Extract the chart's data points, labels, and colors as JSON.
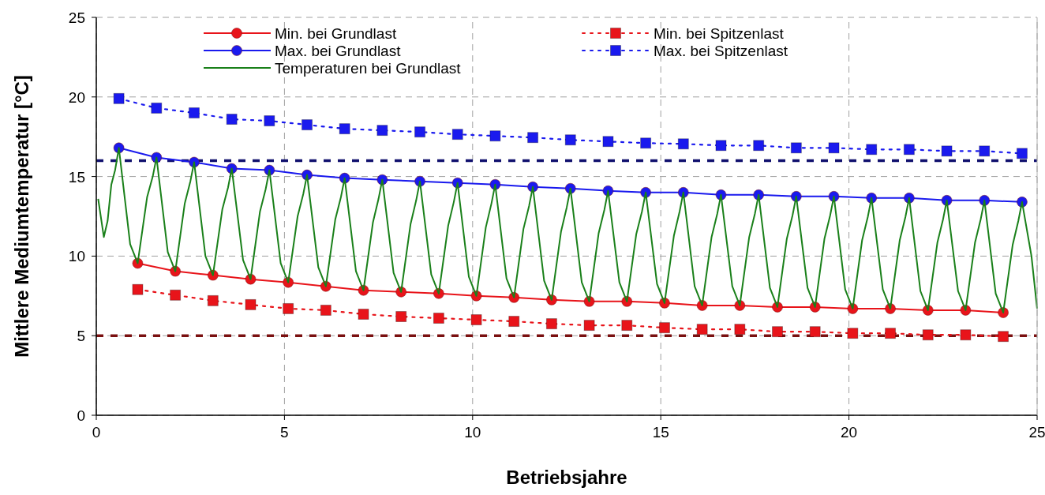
{
  "chart_data": {
    "type": "line",
    "xlabel": "Betriebsjahre",
    "ylabel": "Mittlere Mediumtemperatur [°C]",
    "xlim": [
      0,
      25
    ],
    "ylim": [
      0,
      25
    ],
    "xticks": [
      0,
      5,
      10,
      15,
      20,
      25
    ],
    "yticks": [
      0,
      5,
      10,
      15,
      20,
      25
    ],
    "grid": true,
    "legend": "top",
    "ref_lines": [
      {
        "axis": "y",
        "value": 16,
        "color": "#10106e",
        "line_style": "dashed"
      },
      {
        "axis": "y",
        "value": 5,
        "color": "#7a1010",
        "line_style": "dashed"
      }
    ],
    "series": [
      {
        "name": "Min. bei Grundlast",
        "color": "#e8141a",
        "marker": "circle",
        "line_style": "solid",
        "x": [
          1.1,
          2.1,
          3.1,
          4.1,
          5.1,
          6.1,
          7.1,
          8.1,
          9.1,
          10.1,
          11.1,
          12.1,
          13.1,
          14.1,
          15.1,
          16.1,
          17.1,
          18.1,
          19.1,
          20.1,
          21.1,
          22.1,
          23.1,
          24.1
        ],
        "values": [
          9.55,
          9.05,
          8.8,
          8.55,
          8.35,
          8.1,
          7.85,
          7.75,
          7.65,
          7.5,
          7.4,
          7.25,
          7.15,
          7.15,
          7.05,
          6.9,
          6.9,
          6.8,
          6.8,
          6.7,
          6.7,
          6.6,
          6.6,
          6.45
        ]
      },
      {
        "name": "Min. bei Spitzenlast",
        "color": "#e8141a",
        "marker": "square",
        "line_style": "dotted",
        "x": [
          1.1,
          2.1,
          3.1,
          4.1,
          5.1,
          6.1,
          7.1,
          8.1,
          9.1,
          10.1,
          11.1,
          12.1,
          13.1,
          14.1,
          15.1,
          16.1,
          17.1,
          18.1,
          19.1,
          20.1,
          21.1,
          22.1,
          23.1,
          24.1
        ],
        "values": [
          7.9,
          7.55,
          7.2,
          6.95,
          6.7,
          6.6,
          6.35,
          6.2,
          6.1,
          6.0,
          5.9,
          5.75,
          5.65,
          5.65,
          5.5,
          5.4,
          5.4,
          5.25,
          5.25,
          5.15,
          5.15,
          5.05,
          5.05,
          4.95
        ]
      },
      {
        "name": "Max. bei Grundlast",
        "color": "#1a1aee",
        "marker": "circle",
        "line_style": "solid",
        "x": [
          0.6,
          1.6,
          2.6,
          3.6,
          4.6,
          5.6,
          6.6,
          7.6,
          8.6,
          9.6,
          10.6,
          11.6,
          12.6,
          13.6,
          14.6,
          15.6,
          16.6,
          17.6,
          18.6,
          19.6,
          20.6,
          21.6,
          22.6,
          23.6,
          24.6
        ],
        "values": [
          16.8,
          16.2,
          15.9,
          15.5,
          15.4,
          15.1,
          14.9,
          14.8,
          14.7,
          14.6,
          14.5,
          14.35,
          14.25,
          14.1,
          14.0,
          14.0,
          13.85,
          13.85,
          13.75,
          13.75,
          13.65,
          13.65,
          13.5,
          13.5,
          13.4
        ]
      },
      {
        "name": "Max. bei Spitzenlast",
        "color": "#1a1aee",
        "marker": "square",
        "line_style": "dotted",
        "x": [
          0.6,
          1.6,
          2.6,
          3.6,
          4.6,
          5.6,
          6.6,
          7.6,
          8.6,
          9.6,
          10.6,
          11.6,
          12.6,
          13.6,
          14.6,
          15.6,
          16.6,
          17.6,
          18.6,
          19.6,
          20.6,
          21.6,
          22.6,
          23.6,
          24.6
        ],
        "values": [
          19.9,
          19.3,
          19.0,
          18.6,
          18.5,
          18.25,
          18.0,
          17.9,
          17.8,
          17.65,
          17.55,
          17.45,
          17.3,
          17.2,
          17.1,
          17.05,
          16.95,
          16.95,
          16.8,
          16.8,
          16.7,
          16.7,
          16.6,
          16.6,
          16.45
        ]
      },
      {
        "name": "Temperaturen bei Grundlast",
        "color": "#1a801a",
        "marker": "none",
        "line_style": "solid",
        "x": [
          0.05,
          0.2,
          0.3,
          0.4,
          0.5,
          0.6,
          0.9,
          1.1,
          1.35,
          1.5,
          1.6,
          1.9,
          2.1,
          2.35,
          2.5,
          2.6,
          2.9,
          3.1,
          3.35,
          3.5,
          3.6,
          3.9,
          4.1,
          4.35,
          4.5,
          4.6,
          4.9,
          5.1,
          5.35,
          5.5,
          5.6,
          5.9,
          6.1,
          6.35,
          6.5,
          6.6,
          6.9,
          7.1,
          7.35,
          7.5,
          7.6,
          7.9,
          8.1,
          8.35,
          8.5,
          8.6,
          8.9,
          9.1,
          9.35,
          9.5,
          9.6,
          9.9,
          10.1,
          10.35,
          10.5,
          10.6,
          10.9,
          11.1,
          11.35,
          11.5,
          11.6,
          11.9,
          12.1,
          12.35,
          12.5,
          12.6,
          12.9,
          13.1,
          13.35,
          13.5,
          13.6,
          13.9,
          14.1,
          14.35,
          14.5,
          14.6,
          14.9,
          15.1,
          15.35,
          15.5,
          15.6,
          15.9,
          16.1,
          16.35,
          16.5,
          16.6,
          16.9,
          17.1,
          17.35,
          17.5,
          17.6,
          17.9,
          18.1,
          18.35,
          18.5,
          18.6,
          18.9,
          19.1,
          19.35,
          19.5,
          19.6,
          19.9,
          20.1,
          20.35,
          20.5,
          20.6,
          20.9,
          21.1,
          21.35,
          21.5,
          21.6,
          21.9,
          22.1,
          22.35,
          22.5,
          22.6,
          22.9,
          23.1,
          23.35,
          23.5,
          23.6,
          23.9,
          24.1,
          24.35,
          24.5,
          24.6,
          24.85,
          25
        ],
        "values": [
          13.6,
          11.2,
          12.2,
          14.5,
          15.4,
          16.8,
          10.75,
          9.55,
          13.7,
          15.0,
          16.2,
          10.25,
          9.05,
          13.3,
          14.7,
          15.9,
          10.0,
          8.8,
          12.95,
          14.3,
          15.5,
          9.75,
          8.55,
          12.8,
          14.2,
          15.4,
          9.55,
          8.35,
          12.5,
          13.9,
          15.1,
          9.3,
          8.1,
          12.3,
          13.7,
          14.9,
          9.05,
          7.85,
          12.1,
          13.6,
          14.8,
          8.95,
          7.75,
          12.0,
          13.5,
          14.7,
          8.85,
          7.65,
          11.9,
          13.4,
          14.6,
          8.7,
          7.5,
          11.8,
          13.3,
          14.5,
          8.6,
          7.4,
          11.7,
          13.15,
          14.35,
          8.45,
          7.25,
          11.55,
          13.05,
          14.25,
          8.35,
          7.15,
          11.45,
          12.9,
          14.1,
          8.35,
          7.15,
          11.4,
          12.8,
          14.0,
          8.25,
          7.05,
          11.3,
          12.8,
          14.0,
          8.1,
          6.9,
          11.2,
          12.65,
          13.85,
          8.1,
          6.9,
          11.2,
          12.65,
          13.85,
          8.0,
          6.8,
          11.1,
          12.55,
          13.75,
          8.0,
          6.8,
          11.1,
          12.55,
          13.75,
          7.9,
          6.7,
          11.0,
          12.45,
          13.65,
          7.9,
          6.7,
          11.0,
          12.45,
          13.65,
          7.8,
          6.6,
          10.85,
          12.3,
          13.5,
          7.8,
          6.6,
          10.85,
          12.3,
          13.5,
          7.65,
          6.45,
          10.7,
          12.2,
          13.4,
          10.0,
          6.7
        ]
      }
    ]
  }
}
